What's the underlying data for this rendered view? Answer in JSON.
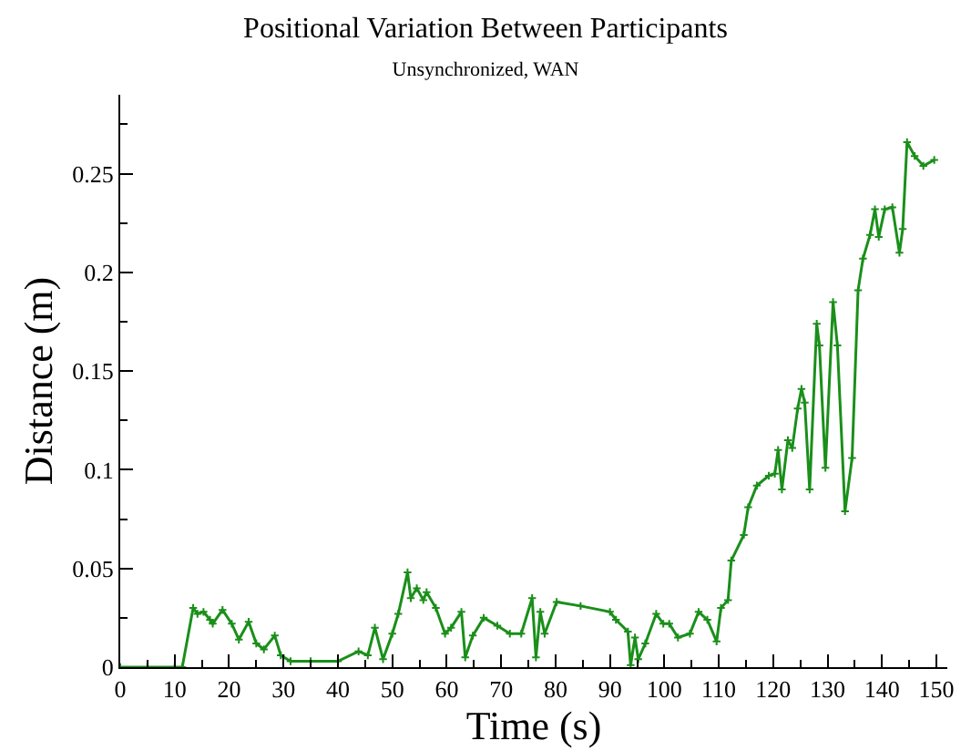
{
  "chart_data": {
    "type": "line",
    "title": "Positional Variation Between Participants",
    "subtitle": "Unsynchronized, WAN",
    "xlabel": "Time (s)",
    "ylabel": "Distance (m)",
    "xlim": [
      0,
      152
    ],
    "xticks": [
      0,
      10,
      20,
      30,
      40,
      50,
      60,
      70,
      80,
      90,
      100,
      110,
      120,
      130,
      140,
      150
    ],
    "ylim": [
      0,
      0.29
    ],
    "yticks": [
      0,
      0.05,
      0.1,
      0.15,
      0.2,
      0.25
    ],
    "marker": "cross",
    "line_style": "solid",
    "series": [
      {
        "color": "#1a8f1a",
        "x": [
          0,
          5,
          10,
          11.4,
          13.4,
          14.2,
          15.3,
          16.5,
          17,
          18.8,
          20.5,
          21.8,
          23.6,
          25,
          26.4,
          28.4,
          29.5,
          31.3,
          35,
          40,
          43.8,
          45.5,
          46.8,
          48.3,
          50,
          51.1,
          52.8,
          53.4,
          54.5,
          55.7,
          56.3,
          58,
          59.7,
          60.8,
          62.7,
          63.4,
          64.8,
          66.8,
          69.3,
          71.6,
          73.7,
          75.7,
          76.4,
          77.2,
          78,
          80.2,
          84.6,
          90,
          91.1,
          93.3,
          93.8,
          94.6,
          95.2,
          96.5,
          98.5,
          99.8,
          100.9,
          102.5,
          104.7,
          106.3,
          107.9,
          109.6,
          110.4,
          111.7,
          112.3,
          114.6,
          115.4,
          117,
          119.2,
          120.3,
          120.9,
          121.6,
          122.7,
          123.5,
          124.5,
          125.2,
          125.8,
          126.7,
          128,
          128.5,
          129.6,
          131,
          131.8,
          133.2,
          134.5,
          135.6,
          136.5,
          137.8,
          138.7,
          139.4,
          140.5,
          141.9,
          143.2,
          143.8,
          144.6,
          146,
          147.6,
          149.6
        ],
        "values": [
          0,
          0,
          0,
          0,
          0.03,
          0.027,
          0.028,
          0.024,
          0.022,
          0.029,
          0.022,
          0.014,
          0.023,
          0.012,
          0.009,
          0.016,
          0.006,
          0.003,
          0.003,
          0.003,
          0.008,
          0.006,
          0.02,
          0.004,
          0.017,
          0.027,
          0.048,
          0.035,
          0.04,
          0.034,
          0.038,
          0.03,
          0.017,
          0.02,
          0.028,
          0.005,
          0.016,
          0.025,
          0.021,
          0.017,
          0.017,
          0.035,
          0.005,
          0.028,
          0.017,
          0.033,
          0.031,
          0.028,
          0.024,
          0.018,
          0.001,
          0.015,
          0.004,
          0.012,
          0.027,
          0.022,
          0.022,
          0.015,
          0.017,
          0.028,
          0.024,
          0.013,
          0.03,
          0.034,
          0.054,
          0.067,
          0.081,
          0.092,
          0.097,
          0.098,
          0.11,
          0.09,
          0.115,
          0.111,
          0.131,
          0.141,
          0.134,
          0.09,
          0.174,
          0.163,
          0.101,
          0.185,
          0.163,
          0.079,
          0.106,
          0.191,
          0.207,
          0.219,
          0.232,
          0.218,
          0.232,
          0.233,
          0.21,
          0.222,
          0.266,
          0.259,
          0.254,
          0.257
        ]
      }
    ]
  }
}
